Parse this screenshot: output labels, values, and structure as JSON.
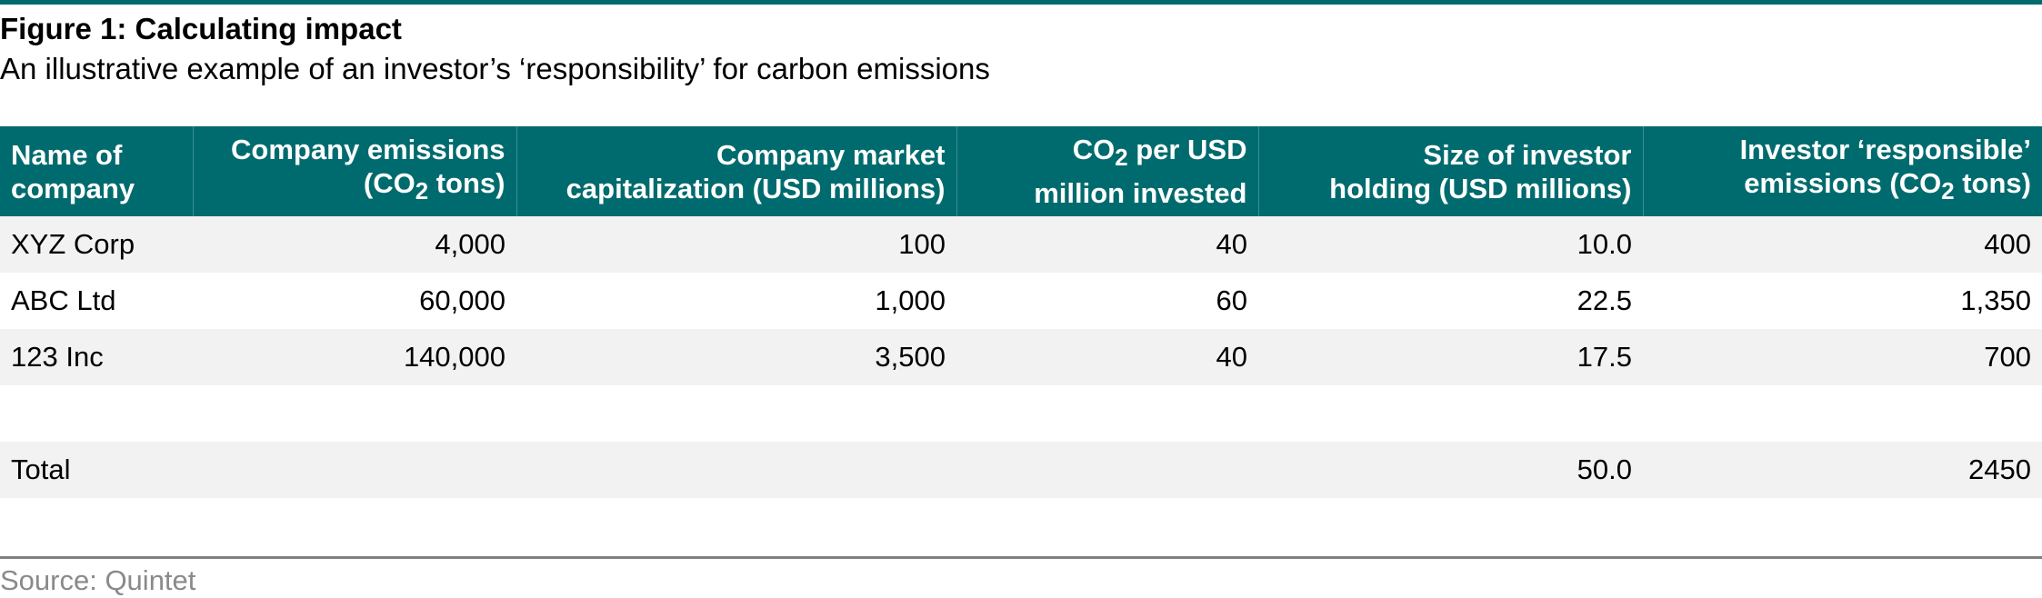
{
  "figure": {
    "title": "Figure 1: Calculating impact",
    "subtitle": "An illustrative example of an investor’s ‘responsibility’ for carbon emissions",
    "source": "Source: Quintet"
  },
  "colors": {
    "header_bg": "#006b6e",
    "header_text": "#ffffff",
    "row_shade": "#f2f2f2",
    "source_text": "#8a8a8a",
    "bottom_rule": "#808080"
  },
  "chart_data": {
    "type": "table",
    "title": "Figure 1: Calculating impact",
    "subtitle": "An illustrative example of an investor’s ‘responsibility’ for carbon emissions",
    "columns": [
      {
        "line1": "Name of",
        "line2": "company"
      },
      {
        "line1": "Company emissions",
        "line2_pre": "(CO",
        "line2_sub": "2",
        "line2_post": " tons)"
      },
      {
        "line1": "Company market",
        "line2": "capitalization (USD millions)"
      },
      {
        "line1_pre": "CO",
        "line1_sub": "2",
        "line1_post": " per USD",
        "line2": "million invested"
      },
      {
        "line1": "Size of investor",
        "line2": "holding (USD millions)"
      },
      {
        "line1": "Investor ‘responsible’",
        "line2_pre": "emissions (CO",
        "line2_sub": "2",
        "line2_post": " tons)"
      }
    ],
    "rows": [
      {
        "name": "XYZ Corp",
        "emissions": "4,000",
        "market_cap": "100",
        "co2_per_musd": "40",
        "holding": "10.0",
        "responsible": "400"
      },
      {
        "name": "ABC Ltd",
        "emissions": "60,000",
        "market_cap": "1,000",
        "co2_per_musd": "60",
        "holding": "22.5",
        "responsible": "1,350"
      },
      {
        "name": "123 Inc",
        "emissions": "140,000",
        "market_cap": "3,500",
        "co2_per_musd": "40",
        "holding": "17.5",
        "responsible": "700"
      }
    ],
    "total": {
      "name": "Total",
      "emissions": "",
      "market_cap": "",
      "co2_per_musd": "",
      "holding": "50.0",
      "responsible": "2450"
    }
  }
}
